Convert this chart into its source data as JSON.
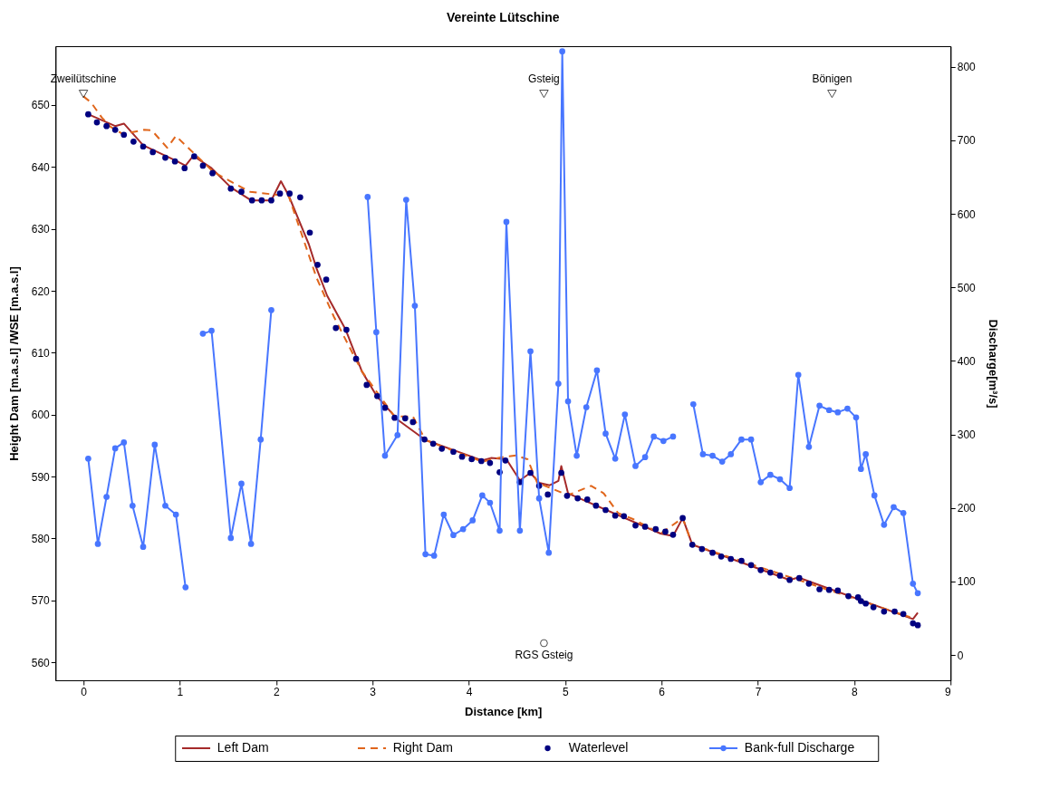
{
  "chart_data": {
    "type": "line",
    "title": "Vereinte Lütschine",
    "xlabel": "Distance [km]",
    "ylabel": "Height Dam [m.a.s.l] /WSE [m.a.s.l]",
    "y2label": "Discharge[m³/s]",
    "xlim": [
      -0.29,
      9.0
    ],
    "xticks": [
      0,
      1,
      2,
      3,
      4,
      5,
      6,
      7,
      8,
      9
    ],
    "ylim": [
      557.1,
      659.5
    ],
    "yticks": [
      560,
      570,
      580,
      590,
      600,
      610,
      620,
      630,
      640,
      650
    ],
    "y2lim": [
      -34.5,
      828
    ],
    "y2ticks": [
      0,
      100,
      200,
      300,
      400,
      500,
      600,
      700,
      800
    ],
    "grid": false,
    "legend": "bottom",
    "annotations": [
      {
        "text": "Zweilütschine",
        "x": 0,
        "y": 651.8
      },
      {
        "text": "Gsteig",
        "x": 4.78,
        "y": 651.8
      },
      {
        "text": "Bönigen",
        "x": 7.77,
        "y": 651.8
      },
      {
        "text": "RGS Gsteig",
        "x": 4.78,
        "y": 563.1
      }
    ],
    "series": [
      {
        "name": "Left Dam",
        "type": "line",
        "color": "#a52a2a",
        "line_style": "solid",
        "x": [
          0.05,
          0.33,
          0.42,
          0.62,
          0.96,
          1.06,
          1.14,
          1.33,
          1.53,
          1.74,
          1.95,
          2.05,
          2.13,
          2.34,
          2.42,
          2.53,
          2.72,
          2.89,
          3.04,
          3.26,
          3.55,
          4.14,
          4.23,
          4.39,
          4.53,
          4.64,
          4.73,
          4.84,
          4.93,
          4.96,
          5.03,
          5.99,
          6.12,
          6.22,
          6.32,
          7.33,
          7.42,
          8.61,
          8.66
        ],
        "values": [
          648.5,
          646.6,
          647.0,
          643.5,
          641.0,
          640.2,
          641.8,
          639.8,
          636.7,
          634.6,
          634.6,
          637.7,
          635.4,
          627.5,
          623.6,
          619.2,
          613.8,
          607.0,
          603.1,
          599.2,
          595.9,
          592.6,
          593.0,
          592.8,
          589.4,
          590.6,
          589.0,
          588.6,
          589.3,
          591.7,
          587.3,
          580.8,
          580.4,
          583.3,
          579.0,
          573.3,
          573.7,
          567.0,
          568.0
        ]
      },
      {
        "name": "Right Dam",
        "type": "line",
        "color": "#e0661c",
        "line_style": "dashed",
        "x": [
          0.0,
          0.08,
          0.19,
          0.28,
          0.41,
          0.63,
          0.71,
          0.87,
          0.96,
          1.1,
          1.35,
          1.57,
          1.73,
          1.95,
          2.13,
          2.42,
          2.6,
          2.89,
          3.23,
          3.42,
          3.55,
          4.14,
          4.33,
          4.49,
          4.61,
          4.71,
          5.03,
          5.27,
          5.4,
          5.55,
          5.71,
          5.99,
          6.22,
          6.32,
          8.58
        ],
        "values": [
          651.4,
          650.4,
          648.0,
          646.5,
          645.3,
          646.0,
          645.9,
          643.1,
          645.0,
          642.9,
          639.2,
          637.3,
          636.0,
          635.6,
          635.3,
          622.1,
          615.8,
          607.0,
          599.7,
          599.7,
          595.9,
          592.4,
          593.1,
          593.4,
          592.8,
          589.0,
          587.0,
          588.5,
          587.3,
          584.1,
          583.1,
          580.8,
          583.3,
          579.0,
          567.3
        ]
      },
      {
        "name": "Waterlevel",
        "type": "scatter",
        "color": "#000080",
        "marker": "circle",
        "x": [
          0.05,
          0.14,
          0.24,
          0.33,
          0.42,
          0.52,
          0.62,
          0.72,
          0.85,
          0.95,
          1.05,
          1.15,
          1.24,
          1.34,
          1.53,
          1.64,
          1.75,
          1.85,
          1.95,
          2.04,
          2.14,
          2.25,
          2.35,
          2.43,
          2.52,
          2.62,
          2.73,
          2.83,
          2.94,
          3.05,
          3.13,
          3.23,
          3.34,
          3.42,
          3.54,
          3.63,
          3.72,
          3.84,
          3.93,
          4.03,
          4.13,
          4.22,
          4.32,
          4.38,
          4.53,
          4.64,
          4.73,
          4.82,
          4.96,
          5.02,
          5.13,
          5.23,
          5.32,
          5.42,
          5.52,
          5.61,
          5.73,
          5.83,
          5.94,
          6.04,
          6.12,
          6.22,
          6.32,
          6.42,
          6.53,
          6.62,
          6.72,
          6.83,
          6.93,
          7.03,
          7.13,
          7.23,
          7.33,
          7.43,
          7.53,
          7.64,
          7.74,
          7.83,
          7.94,
          8.04,
          8.07,
          8.12,
          8.2,
          8.31,
          8.42,
          8.51,
          8.61,
          8.66
        ],
        "values": [
          648.5,
          647.2,
          646.6,
          646.0,
          645.2,
          644.1,
          643.3,
          642.4,
          641.5,
          640.9,
          639.8,
          641.7,
          640.2,
          639.0,
          636.5,
          636.0,
          634.6,
          634.6,
          634.6,
          635.7,
          635.7,
          635.1,
          629.4,
          624.2,
          621.8,
          614.0,
          613.7,
          609.0,
          604.8,
          603.0,
          601.1,
          599.5,
          599.4,
          598.8,
          596.0,
          595.3,
          594.5,
          594.0,
          593.2,
          592.8,
          592.5,
          592.2,
          590.7,
          592.6,
          589.1,
          590.6,
          588.5,
          587.1,
          590.6,
          586.9,
          586.5,
          586.3,
          585.3,
          584.6,
          583.7,
          583.6,
          582.1,
          581.9,
          581.5,
          581.1,
          580.6,
          583.3,
          579.0,
          578.3,
          577.7,
          577.1,
          576.7,
          576.4,
          575.7,
          574.9,
          574.5,
          574.0,
          573.3,
          573.6,
          572.7,
          571.8,
          571.7,
          571.6,
          570.7,
          570.5,
          569.9,
          569.5,
          568.9,
          568.2,
          568.2,
          567.8,
          566.3,
          566.0
        ]
      },
      {
        "name": "Bank-full Discharge",
        "type": "line",
        "axis": "y2",
        "color": "#4876ff",
        "marker": "circle",
        "line_style": "solid",
        "x": [
          0.05,
          0.15,
          0.24,
          0.33,
          0.42,
          0.51,
          0.62,
          0.74,
          0.85,
          0.96,
          1.06,
          1.15,
          1.24,
          1.33,
          1.53,
          1.64,
          1.74,
          1.84,
          1.95,
          2.4,
          2.95,
          3.04,
          3.13,
          3.26,
          3.35,
          3.44,
          3.55,
          3.64,
          3.74,
          3.84,
          3.94,
          4.04,
          4.14,
          4.22,
          4.32,
          4.39,
          4.53,
          4.64,
          4.73,
          4.83,
          4.93,
          4.97,
          5.03,
          5.12,
          5.22,
          5.33,
          5.42,
          5.52,
          5.62,
          5.73,
          5.83,
          5.92,
          6.02,
          6.12,
          6.2,
          6.33,
          6.43,
          6.53,
          6.63,
          6.72,
          6.83,
          6.93,
          7.03,
          7.13,
          7.23,
          7.33,
          7.42,
          7.53,
          7.64,
          7.74,
          7.83,
          7.93,
          8.02,
          8.07,
          8.12,
          8.21,
          8.31,
          8.41,
          8.51,
          8.61,
          8.66
        ],
        "values": [
          267,
          151,
          215,
          281,
          289,
          203,
          147,
          286,
          203,
          191,
          92,
          null,
          437,
          441,
          159,
          233,
          151,
          293,
          469,
          null,
          623,
          439,
          271,
          299,
          619,
          475,
          137,
          135,
          191,
          163,
          171,
          183,
          217,
          207,
          169,
          589,
          169,
          413,
          213,
          139,
          369,
          821,
          345,
          271,
          337,
          387,
          301,
          267,
          327,
          257,
          269,
          297,
          291,
          297,
          null,
          341,
          273,
          271,
          263,
          273,
          293,
          293,
          235,
          245,
          239,
          227,
          381,
          283,
          339,
          333,
          330,
          335,
          323,
          253,
          273,
          217,
          177,
          201,
          193,
          97,
          84
        ]
      }
    ]
  }
}
